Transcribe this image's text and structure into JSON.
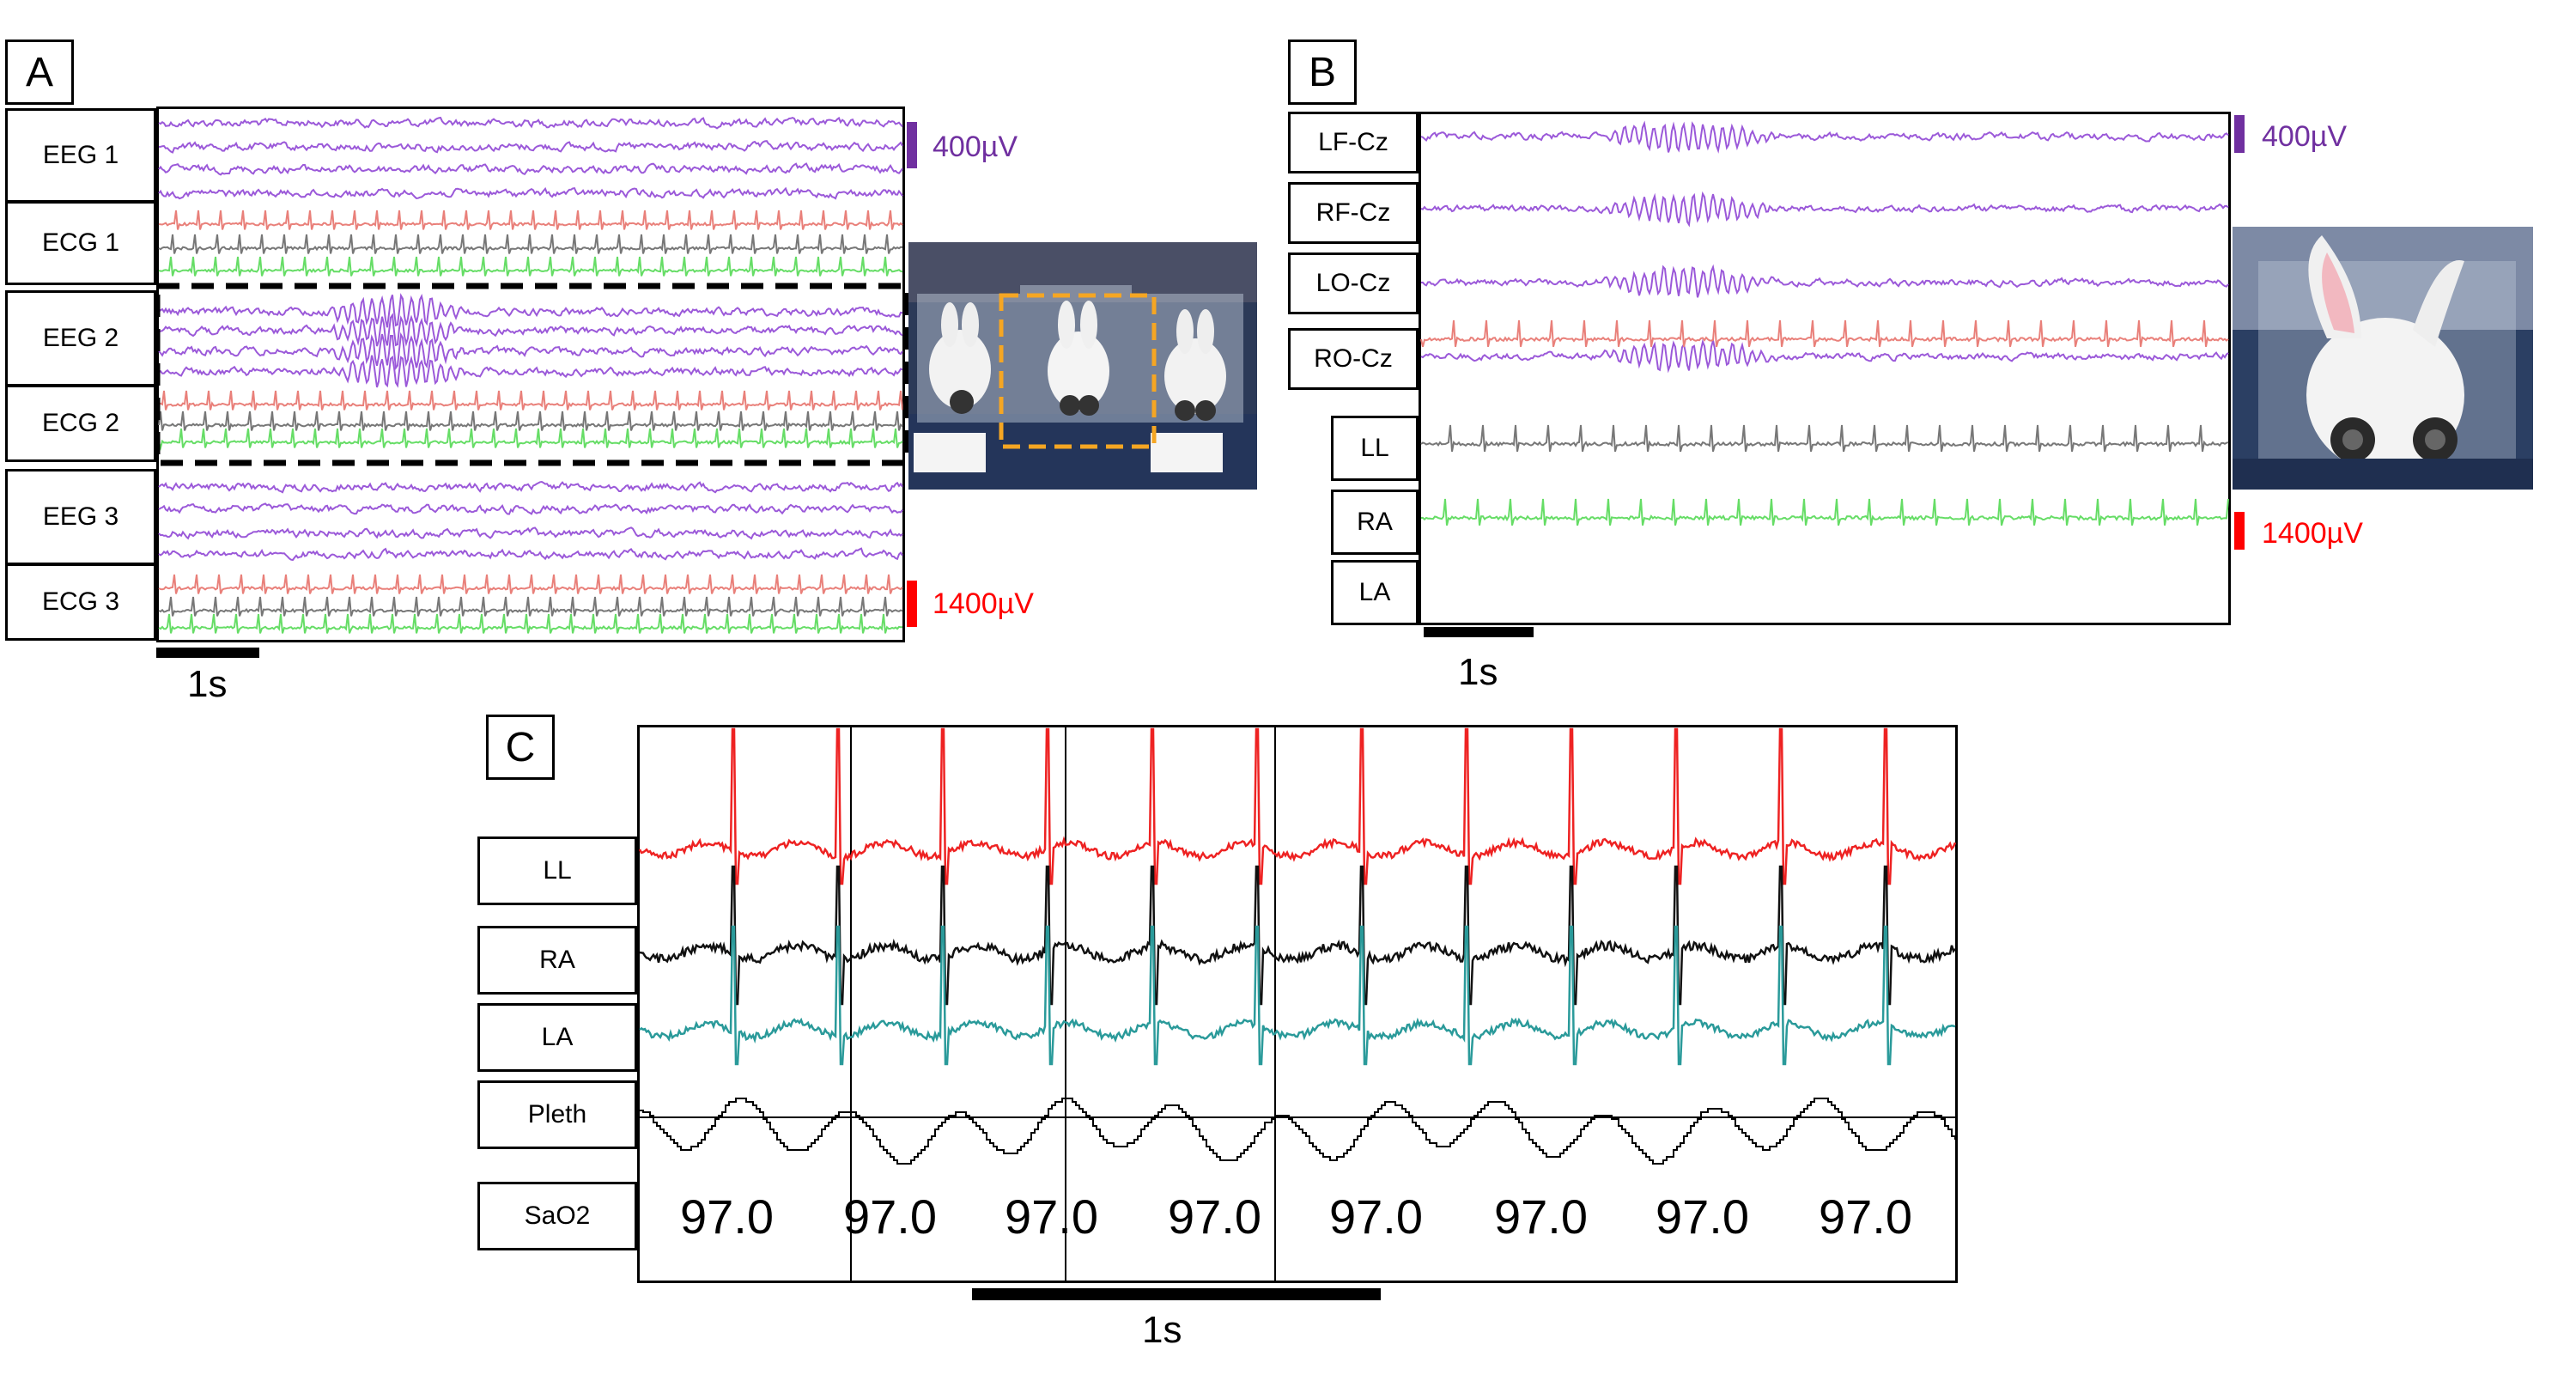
{
  "panel_a": {
    "letter": "A",
    "channels": [
      "EEG 1",
      "ECG 1",
      "EEG 2",
      "ECG 2",
      "EEG 3",
      "ECG 3"
    ],
    "scale_label": "1s",
    "eeg_cal": "400µV",
    "ecg_cal": "1400µV"
  },
  "panel_b": {
    "letter": "B",
    "eeg_channels": [
      "LF-Cz",
      "RF-Cz",
      "LO-Cz",
      "RO-Cz"
    ],
    "ecg_channels": [
      "LL",
      "RA",
      "LA"
    ],
    "scale_label": "1s",
    "eeg_cal": "400µV",
    "ecg_cal": "1400µV"
  },
  "panel_c": {
    "letter": "C",
    "channels": [
      "LL",
      "RA",
      "LA",
      "Pleth",
      "SaO2"
    ],
    "sao2_values": [
      "97.0",
      "97.0",
      "97.0",
      "97.0",
      "97.0",
      "97.0",
      "97.0",
      "97.0"
    ],
    "scale_label": "1s"
  },
  "colors": {
    "eeg": "#9b59d9",
    "ecg_ll": "#e9807a",
    "ecg_ra": "#777777",
    "ecg_la": "#66dd66",
    "c_ll": "#ee2222",
    "c_ra": "#111111",
    "c_la": "#2a9a9a",
    "eeg_cal": "#7030a0",
    "ecg_cal": "#ff0000",
    "highlight": "#f5a623"
  }
}
